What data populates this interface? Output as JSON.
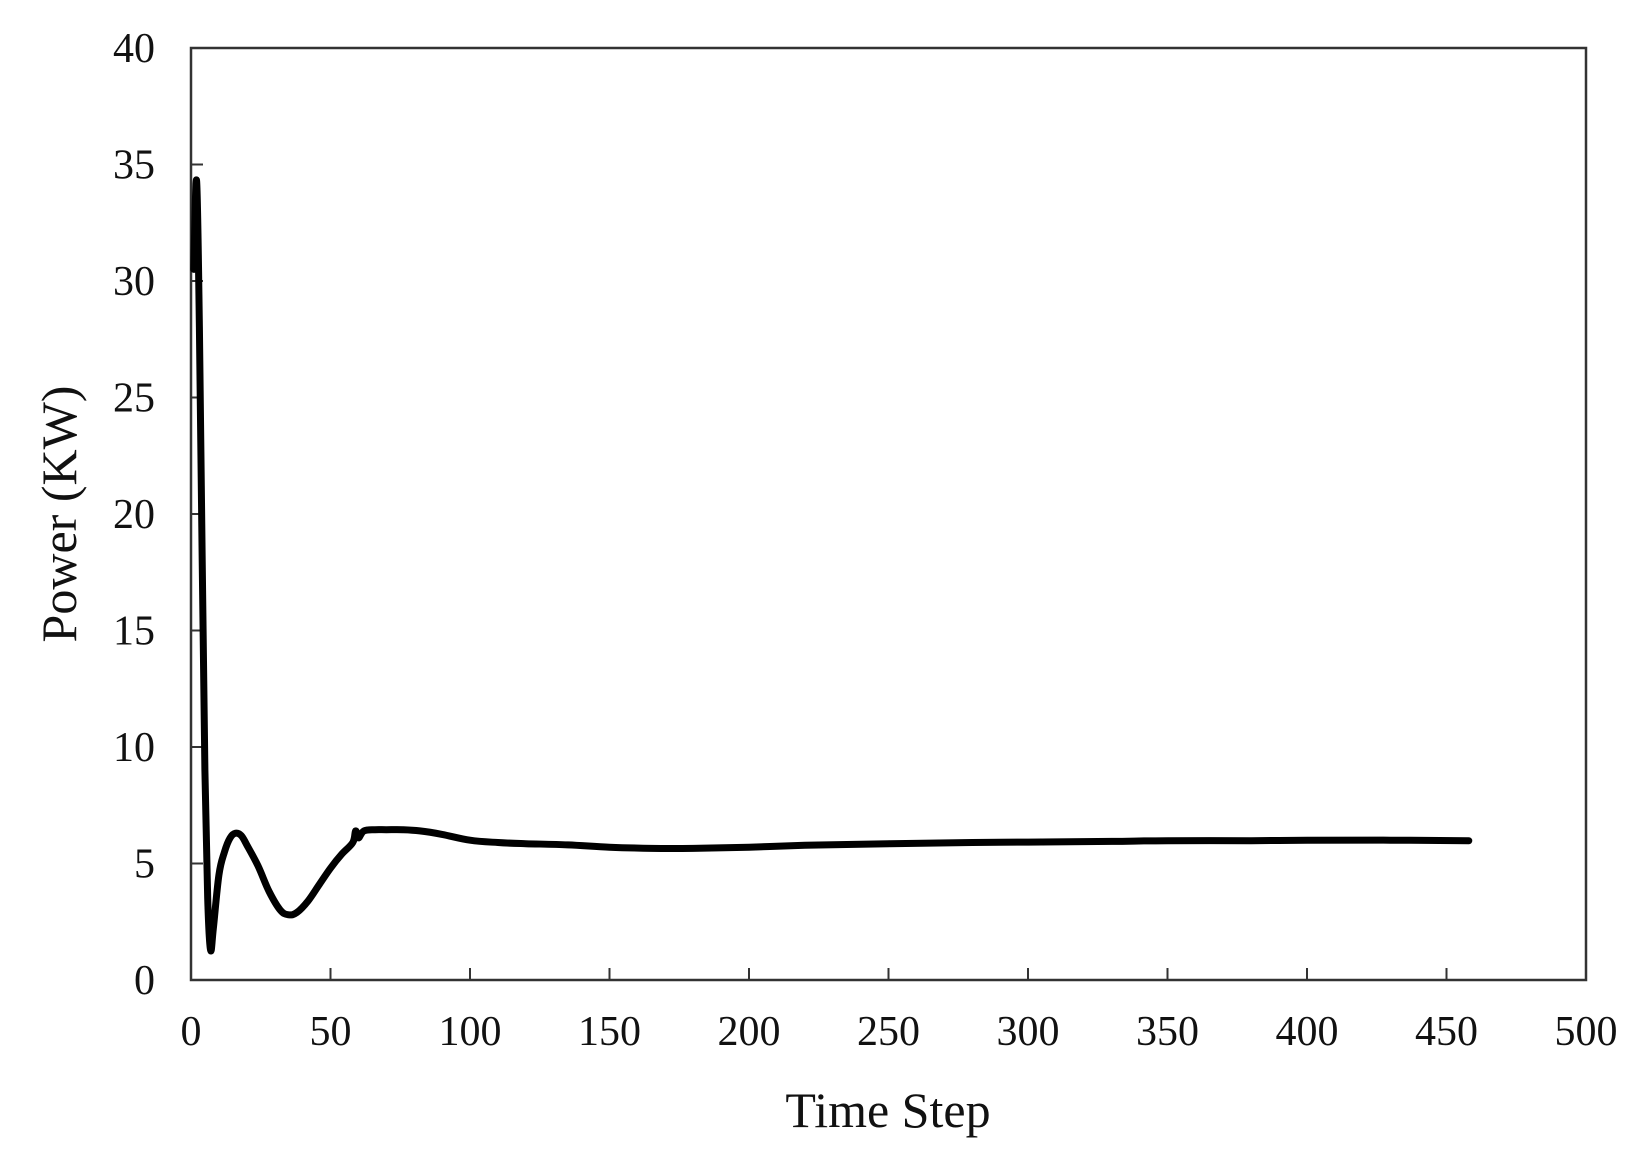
{
  "chart_data": {
    "type": "line",
    "title": "",
    "xlabel": "Time Step",
    "ylabel": "Power (KW)",
    "xlim": [
      0,
      500
    ],
    "ylim": [
      0,
      40
    ],
    "xticks": [
      0,
      50,
      100,
      150,
      200,
      250,
      300,
      350,
      400,
      450,
      500
    ],
    "yticks": [
      0,
      5,
      10,
      15,
      20,
      25,
      30,
      35,
      40
    ],
    "grid": false,
    "legend": null,
    "series": [
      {
        "name": "Power",
        "color": "#000000",
        "x": [
          1,
          2,
          3,
          4,
          5,
          6,
          7,
          8,
          10,
          12,
          14,
          16,
          18,
          20,
          24,
          28,
          32,
          35,
          38,
          42,
          46,
          50,
          54,
          58,
          59,
          60,
          62,
          66,
          70,
          76,
          82,
          90,
          100,
          110,
          120,
          135,
          150,
          165,
          180,
          200,
          220,
          250,
          280,
          300,
          330,
          350,
          380,
          400,
          430,
          458
        ],
        "y": [
          30.5,
          34.3,
          28.0,
          18.0,
          9.0,
          3.5,
          1.3,
          2.2,
          4.5,
          5.5,
          6.1,
          6.3,
          6.2,
          5.8,
          4.9,
          3.8,
          3.0,
          2.8,
          2.9,
          3.4,
          4.1,
          4.8,
          5.4,
          5.9,
          6.4,
          6.1,
          6.4,
          6.45,
          6.45,
          6.45,
          6.4,
          6.25,
          6.0,
          5.9,
          5.85,
          5.8,
          5.7,
          5.65,
          5.65,
          5.7,
          5.78,
          5.85,
          5.9,
          5.92,
          5.95,
          5.98,
          5.98,
          6.0,
          6.0,
          5.98
        ]
      }
    ]
  }
}
